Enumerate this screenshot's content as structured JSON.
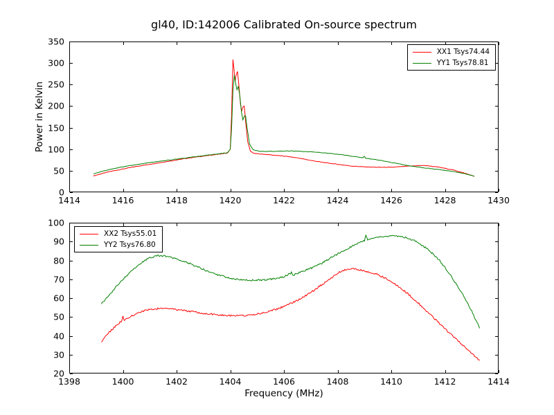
{
  "chart_data": [
    {
      "id": "top-spectrum",
      "type": "line",
      "title": "gl40, ID:142006 Calibrated On-source spectrum",
      "xlabel": "",
      "ylabel": "Power in Kelvin",
      "xlim": [
        1414,
        1430
      ],
      "ylim": [
        0,
        350
      ],
      "xticks": [
        1414,
        1416,
        1418,
        1420,
        1422,
        1424,
        1426,
        1428,
        1430
      ],
      "yticks": [
        0,
        50,
        100,
        150,
        200,
        250,
        300,
        350
      ],
      "grid": false,
      "legend_position": "upper right",
      "frame_color": "#000000",
      "series": [
        {
          "name": "XX1 Tsys74.44",
          "color": "#ff0000",
          "noise_k": 0.6,
          "points": [
            [
              1414.9,
              38
            ],
            [
              1415.5,
              48
            ],
            [
              1416,
              54
            ],
            [
              1416.5,
              60
            ],
            [
              1417,
              65
            ],
            [
              1417.5,
              70
            ],
            [
              1418,
              75
            ],
            [
              1418.5,
              80
            ],
            [
              1419,
              84
            ],
            [
              1419.5,
              88
            ],
            [
              1419.9,
              91
            ],
            [
              1420.0,
              100
            ],
            [
              1420.05,
              180
            ],
            [
              1420.1,
              308
            ],
            [
              1420.14,
              285
            ],
            [
              1420.18,
              258
            ],
            [
              1420.22,
              272
            ],
            [
              1420.27,
              280
            ],
            [
              1420.32,
              250
            ],
            [
              1420.38,
              205
            ],
            [
              1420.42,
              188
            ],
            [
              1420.47,
              198
            ],
            [
              1420.52,
              200
            ],
            [
              1420.58,
              160
            ],
            [
              1420.65,
              118
            ],
            [
              1420.75,
              95
            ],
            [
              1420.9,
              90
            ],
            [
              1421.3,
              88
            ],
            [
              1422,
              84
            ],
            [
              1422.5,
              80
            ],
            [
              1423,
              74
            ],
            [
              1423.5,
              69
            ],
            [
              1424,
              65
            ],
            [
              1424.5,
              61
            ],
            [
              1425,
              59
            ],
            [
              1425.5,
              58
            ],
            [
              1426,
              58
            ],
            [
              1426.5,
              60
            ],
            [
              1427,
              62
            ],
            [
              1427.3,
              62
            ],
            [
              1427.8,
              58
            ],
            [
              1428.3,
              52
            ],
            [
              1428.7,
              45
            ],
            [
              1429.1,
              37
            ]
          ]
        },
        {
          "name": "YY1 Tsys78.81",
          "color": "#008000",
          "noise_k": 0.6,
          "points": [
            [
              1414.9,
              43
            ],
            [
              1415.5,
              53
            ],
            [
              1416,
              59
            ],
            [
              1416.5,
              64
            ],
            [
              1417,
              69
            ],
            [
              1417.5,
              73
            ],
            [
              1418,
              77
            ],
            [
              1418.5,
              81
            ],
            [
              1419,
              85
            ],
            [
              1419.5,
              89
            ],
            [
              1419.9,
              92
            ],
            [
              1420.0,
              100
            ],
            [
              1420.05,
              150
            ],
            [
              1420.1,
              235
            ],
            [
              1420.15,
              272
            ],
            [
              1420.2,
              252
            ],
            [
              1420.25,
              238
            ],
            [
              1420.3,
              246
            ],
            [
              1420.36,
              222
            ],
            [
              1420.42,
              185
            ],
            [
              1420.47,
              168
            ],
            [
              1420.52,
              176
            ],
            [
              1420.57,
              178
            ],
            [
              1420.63,
              148
            ],
            [
              1420.72,
              112
            ],
            [
              1420.85,
              99
            ],
            [
              1421.1,
              95
            ],
            [
              1421.6,
              95
            ],
            [
              1422.2,
              96
            ],
            [
              1423,
              94
            ],
            [
              1423.6,
              91
            ],
            [
              1424.2,
              87
            ],
            [
              1424.95,
              80
            ],
            [
              1425.0,
              84
            ],
            [
              1425.05,
              79
            ],
            [
              1425.6,
              74
            ],
            [
              1426.1,
              68
            ],
            [
              1426.6,
              62
            ],
            [
              1427.1,
              58
            ],
            [
              1427.6,
              54
            ],
            [
              1428.1,
              50
            ],
            [
              1428.6,
              45
            ],
            [
              1429.1,
              37
            ]
          ]
        }
      ]
    },
    {
      "id": "bottom-spectrum",
      "type": "line",
      "title": "",
      "xlabel": "Frequency (MHz)",
      "ylabel": "",
      "xlim": [
        1398,
        1414
      ],
      "ylim": [
        20,
        100
      ],
      "xticks": [
        1398,
        1400,
        1402,
        1404,
        1406,
        1408,
        1410,
        1412,
        1414
      ],
      "yticks": [
        20,
        30,
        40,
        50,
        60,
        70,
        80,
        90,
        100
      ],
      "grid": false,
      "legend_position": "upper left",
      "frame_color": "#000000",
      "series": [
        {
          "name": "XX2 Tsys55.01",
          "color": "#ff0000",
          "noise_k": 0.45,
          "points": [
            [
              1399.2,
              37
            ],
            [
              1399.4,
              40.5
            ],
            [
              1399.6,
              43.5
            ],
            [
              1399.8,
              46
            ],
            [
              1399.95,
              48
            ],
            [
              1400.0,
              50.5
            ],
            [
              1400.05,
              48.5
            ],
            [
              1400.3,
              50.5
            ],
            [
              1400.6,
              52.5
            ],
            [
              1401,
              54
            ],
            [
              1401.4,
              54.5
            ],
            [
              1401.8,
              54.3
            ],
            [
              1402.2,
              53.6
            ],
            [
              1402.6,
              52.8
            ],
            [
              1403,
              52
            ],
            [
              1403.4,
              51.3
            ],
            [
              1403.8,
              50.8
            ],
            [
              1404.2,
              50.6
            ],
            [
              1404.6,
              50.8
            ],
            [
              1405,
              51.5
            ],
            [
              1405.4,
              52.8
            ],
            [
              1405.8,
              54.5
            ],
            [
              1406.2,
              56.8
            ],
            [
              1406.6,
              59.5
            ],
            [
              1407,
              63
            ],
            [
              1407.4,
              67
            ],
            [
              1407.8,
              71
            ],
            [
              1408.1,
              74
            ],
            [
              1408.4,
              75.5
            ],
            [
              1408.7,
              75.3
            ],
            [
              1409,
              74.5
            ],
            [
              1409.4,
              73
            ],
            [
              1409.8,
              70.5
            ],
            [
              1410.2,
              67
            ],
            [
              1410.6,
              62.5
            ],
            [
              1411,
              57.5
            ],
            [
              1411.4,
              52
            ],
            [
              1411.8,
              46.5
            ],
            [
              1412.2,
              41
            ],
            [
              1412.6,
              36
            ],
            [
              1413,
              30.5
            ],
            [
              1413.3,
              27
            ]
          ]
        },
        {
          "name": "YY2 Tsys76.80",
          "color": "#008000",
          "noise_k": 0.45,
          "points": [
            [
              1399.2,
              57
            ],
            [
              1399.4,
              60
            ],
            [
              1399.6,
              63.5
            ],
            [
              1399.8,
              67
            ],
            [
              1400,
              70
            ],
            [
              1400.3,
              74
            ],
            [
              1400.6,
              78
            ],
            [
              1401,
              81.5
            ],
            [
              1401.3,
              82.5
            ],
            [
              1401.6,
              82.3
            ],
            [
              1402,
              80.8
            ],
            [
              1402.4,
              78.8
            ],
            [
              1402.8,
              76.5
            ],
            [
              1403.2,
              74
            ],
            [
              1403.6,
              72
            ],
            [
              1404,
              70.5
            ],
            [
              1404.4,
              69.8
            ],
            [
              1404.8,
              69.5
            ],
            [
              1405.2,
              69.6
            ],
            [
              1405.6,
              70.2
            ],
            [
              1406,
              71.2
            ],
            [
              1406.28,
              73.5
            ],
            [
              1406.35,
              72.2
            ],
            [
              1406.6,
              73.6
            ],
            [
              1407,
              75.8
            ],
            [
              1407.4,
              78.5
            ],
            [
              1407.8,
              81.8
            ],
            [
              1408.2,
              85
            ],
            [
              1408.6,
              88
            ],
            [
              1409,
              90.5
            ],
            [
              1409.05,
              93.5
            ],
            [
              1409.12,
              91
            ],
            [
              1409.4,
              92
            ],
            [
              1409.8,
              92.8
            ],
            [
              1410.2,
              93
            ],
            [
              1410.6,
              92
            ],
            [
              1411,
              89.5
            ],
            [
              1411.4,
              85.5
            ],
            [
              1411.8,
              80
            ],
            [
              1412.2,
              72.5
            ],
            [
              1412.6,
              63.5
            ],
            [
              1413,
              53
            ],
            [
              1413.3,
              44
            ]
          ]
        }
      ]
    }
  ]
}
